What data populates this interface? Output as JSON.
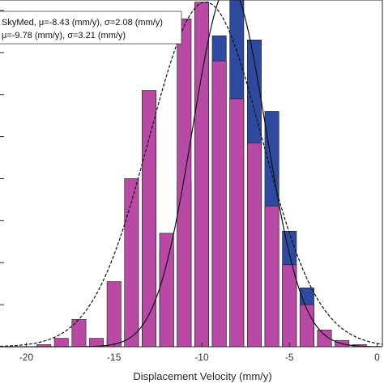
{
  "chart_data": {
    "type": "bar",
    "xlabel": "Displacement Velocity (mm/y)",
    "ylabel": "",
    "xlim": [
      -21.5,
      0.3
    ],
    "ylim": [
      0,
      0.165
    ],
    "x_ticks": [
      -20,
      -15,
      -10,
      -5,
      0
    ],
    "x_tick_labels": [
      "-20",
      "-15",
      "-10",
      "-5",
      "0"
    ],
    "grid": false,
    "legend_position": "top-left",
    "series": [
      {
        "name": "SkyMed, μ=-8.43 (mm/y), σ=2.08 (mm/y)",
        "color": "#2e4a9e",
        "bin_width": 1.0,
        "bin_centers": [
          -16,
          -15,
          -14,
          -13,
          -12,
          -11,
          -10,
          -9,
          -8,
          -7,
          -6,
          -5,
          -4,
          -3
        ],
        "values": [
          0.001,
          0.004,
          0.008,
          0.02,
          0.046,
          0.079,
          0.12,
          0.148,
          0.172,
          0.146,
          0.112,
          0.055,
          0.028,
          0.006
        ],
        "fit_mu": -8.43,
        "fit_sigma": 2.08
      },
      {
        "name": "μ=-9.78 (mm/y), σ=3.21 (mm/y)",
        "color": "#b84aa6",
        "bin_width": 1.0,
        "bin_centers": [
          -19,
          -18,
          -17,
          -16,
          -15,
          -14,
          -13,
          -12,
          -11,
          -10,
          -9,
          -8,
          -7,
          -6,
          -5,
          -4,
          -3,
          -2,
          -1
        ],
        "values": [
          0.001,
          0.004,
          0.013,
          0.004,
          0.031,
          0.08,
          0.122,
          0.054,
          0.156,
          0.164,
          0.136,
          0.118,
          0.097,
          0.067,
          0.039,
          0.02,
          0.008,
          0.003,
          0.001
        ],
        "fit_mu": -9.78,
        "fit_sigma": 3.21
      }
    ]
  }
}
